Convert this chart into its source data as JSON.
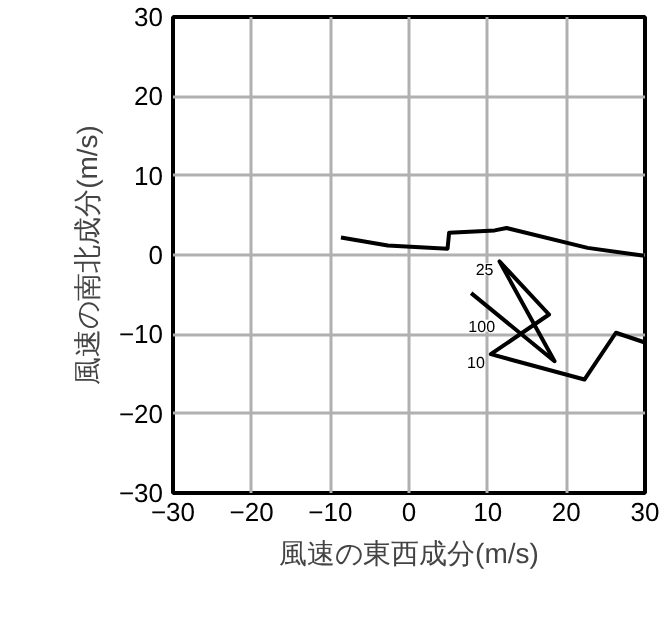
{
  "chart_data": {
    "type": "line",
    "xlabel": "風速の東西成分(m/s)",
    "ylabel": "風速の南北成分(m/s)",
    "x": [
      -8.65,
      -2.7,
      4.9,
      5.1,
      10.9,
      12.4,
      22.7,
      29.9,
      null,
      29.9,
      26.3,
      22.3,
      10.4,
      17.8,
      11.5,
      18.5,
      7.9
    ],
    "series": [
      {
        "color": "#000000",
        "values": [
          2.2,
          1.2,
          0.8,
          2.8,
          3.1,
          3.4,
          0.9,
          -0.1,
          null,
          -11,
          -9.8,
          -15.7,
          -12.5,
          -7.5,
          -0.8,
          -13.4,
          -4.8
        ]
      }
    ],
    "annotations": [
      {
        "text": "25",
        "x": 11.5,
        "y": -0.8
      },
      {
        "text": "100",
        "x": 11.7,
        "y": -7.9
      },
      {
        "text": "10",
        "x": 10.4,
        "y": -12.5
      }
    ],
    "xlim": [
      -30,
      30
    ],
    "ylim": [
      -30,
      30
    ],
    "xticks": [
      -30,
      -20,
      -10,
      0,
      10,
      20,
      30
    ],
    "yticks": [
      -30,
      -20,
      -10,
      0,
      10,
      20,
      30
    ],
    "grid": true,
    "marker": "none",
    "line_style": "solid"
  }
}
